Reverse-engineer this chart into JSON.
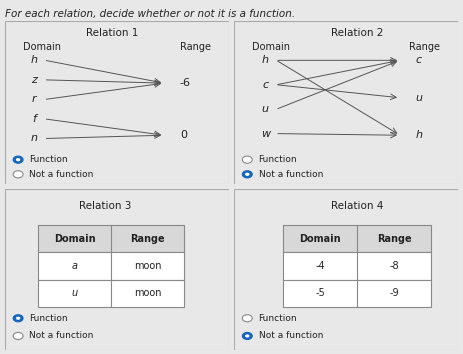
{
  "title": "For each relation, decide whether or not it is a function.",
  "bg_color": "#e8e8e8",
  "panel_bg": "#f2f2f2",
  "border_color": "#aaaaaa",
  "relation1": {
    "title": "Relation 1",
    "domain_label": "Domain",
    "range_label": "Range",
    "domain_items": [
      "h",
      "z",
      "r",
      "f",
      "n"
    ],
    "range_items": [
      "-6",
      "0"
    ],
    "arrows": [
      [
        0,
        0
      ],
      [
        1,
        0
      ],
      [
        2,
        0
      ],
      [
        3,
        1
      ],
      [
        4,
        1
      ]
    ],
    "answer_selected": 0
  },
  "relation2": {
    "title": "Relation 2",
    "domain_label": "Domain",
    "range_label": "Range",
    "domain_items": [
      "h",
      "c",
      "u",
      "w"
    ],
    "range_items": [
      "c",
      "u",
      "h"
    ],
    "arrows": [
      [
        0,
        0
      ],
      [
        1,
        1
      ],
      [
        2,
        0
      ],
      [
        3,
        2
      ],
      [
        0,
        2
      ],
      [
        1,
        0
      ]
    ],
    "answer_selected": 1
  },
  "relation3": {
    "title": "Relation 3",
    "domain_col": "Domain",
    "range_col": "Range",
    "rows": [
      [
        "a",
        "moon"
      ],
      [
        "u",
        "moon"
      ]
    ],
    "answer_selected": 0
  },
  "relation4": {
    "title": "Relation 4",
    "domain_col": "Domain",
    "range_col": "Range",
    "rows": [
      [
        "-4",
        "-8"
      ],
      [
        "-5",
        "-9"
      ]
    ],
    "answer_selected": 1
  },
  "answer_options": [
    "Function",
    "Not a function"
  ],
  "selected_fill": "#1565c0",
  "selected_edge": "#1565c0",
  "unselected_fill": "#ffffff",
  "unselected_edge": "#888888",
  "arrow_color": "#555555",
  "text_color": "#222222",
  "table_header_bg": "#d8d8d8",
  "table_cell_bg": "#ffffff",
  "table_border": "#888888"
}
